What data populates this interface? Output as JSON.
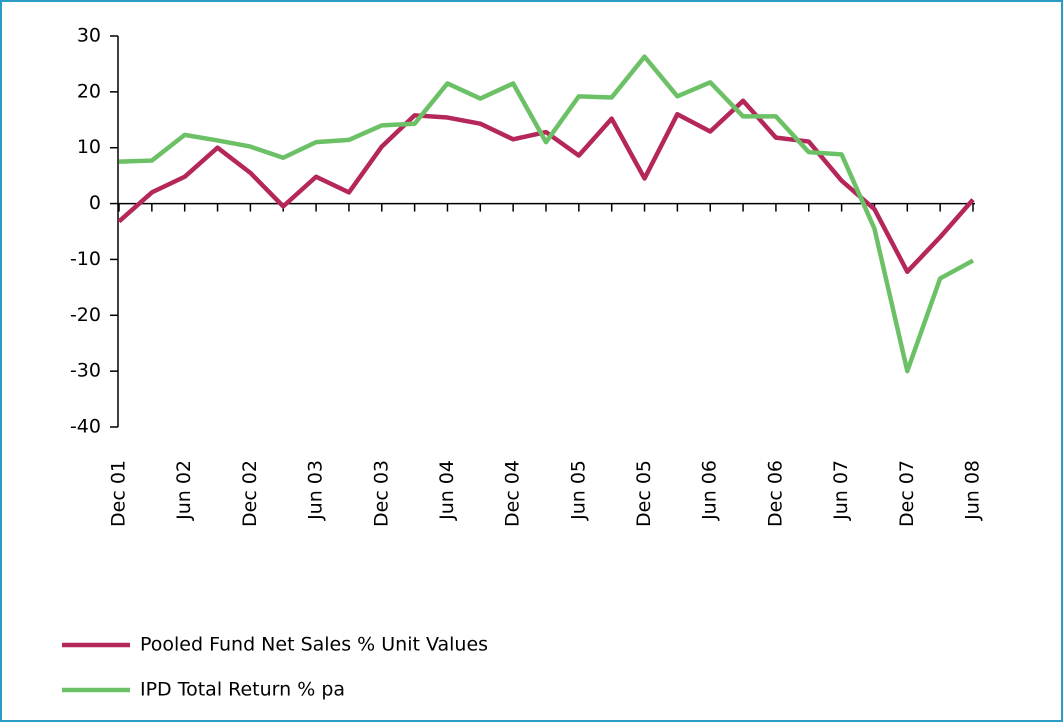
{
  "chart_data": {
    "type": "line",
    "categories": [
      "Dec 01",
      null,
      "Jun 02",
      null,
      "Dec 02",
      null,
      "Jun 03",
      null,
      "Dec 03",
      null,
      "Jun 04",
      null,
      "Dec 04",
      null,
      "Jun 05",
      null,
      "Dec 05",
      null,
      "Jun 06",
      null,
      "Dec 06",
      null,
      "Jun 07",
      null,
      "Dec 07",
      null,
      "Jun 08"
    ],
    "series": [
      {
        "name": "Pooled Fund Net Sales % Unit Values",
        "color": "#b5275a",
        "values": [
          -3.2,
          2,
          4.8,
          10,
          5.5,
          -0.5,
          4.8,
          2,
          10.2,
          15.8,
          15.4,
          14.3,
          11.5,
          12.8,
          8.6,
          15.2,
          4.5,
          16,
          12.9,
          18.4,
          11.8,
          11.1,
          4.1,
          -1,
          -12.2,
          -6,
          0.7
        ]
      },
      {
        "name": "IPD Total Return % pa",
        "color": "#6cc167",
        "values": [
          7.5,
          7.7,
          12.3,
          11.3,
          10.2,
          8.2,
          11,
          11.4,
          14,
          14.3,
          21.5,
          18.8,
          21.5,
          11,
          19.2,
          19,
          26.3,
          19.2,
          21.7,
          15.6,
          15.6,
          9.2,
          8.8,
          -4.5,
          -30,
          -13.4,
          -10.2
        ]
      }
    ],
    "ylim": [
      -40,
      30
    ],
    "yticks": [
      -40,
      -30,
      -20,
      -10,
      0,
      10,
      20,
      30
    ],
    "legend": "bottom-left"
  }
}
